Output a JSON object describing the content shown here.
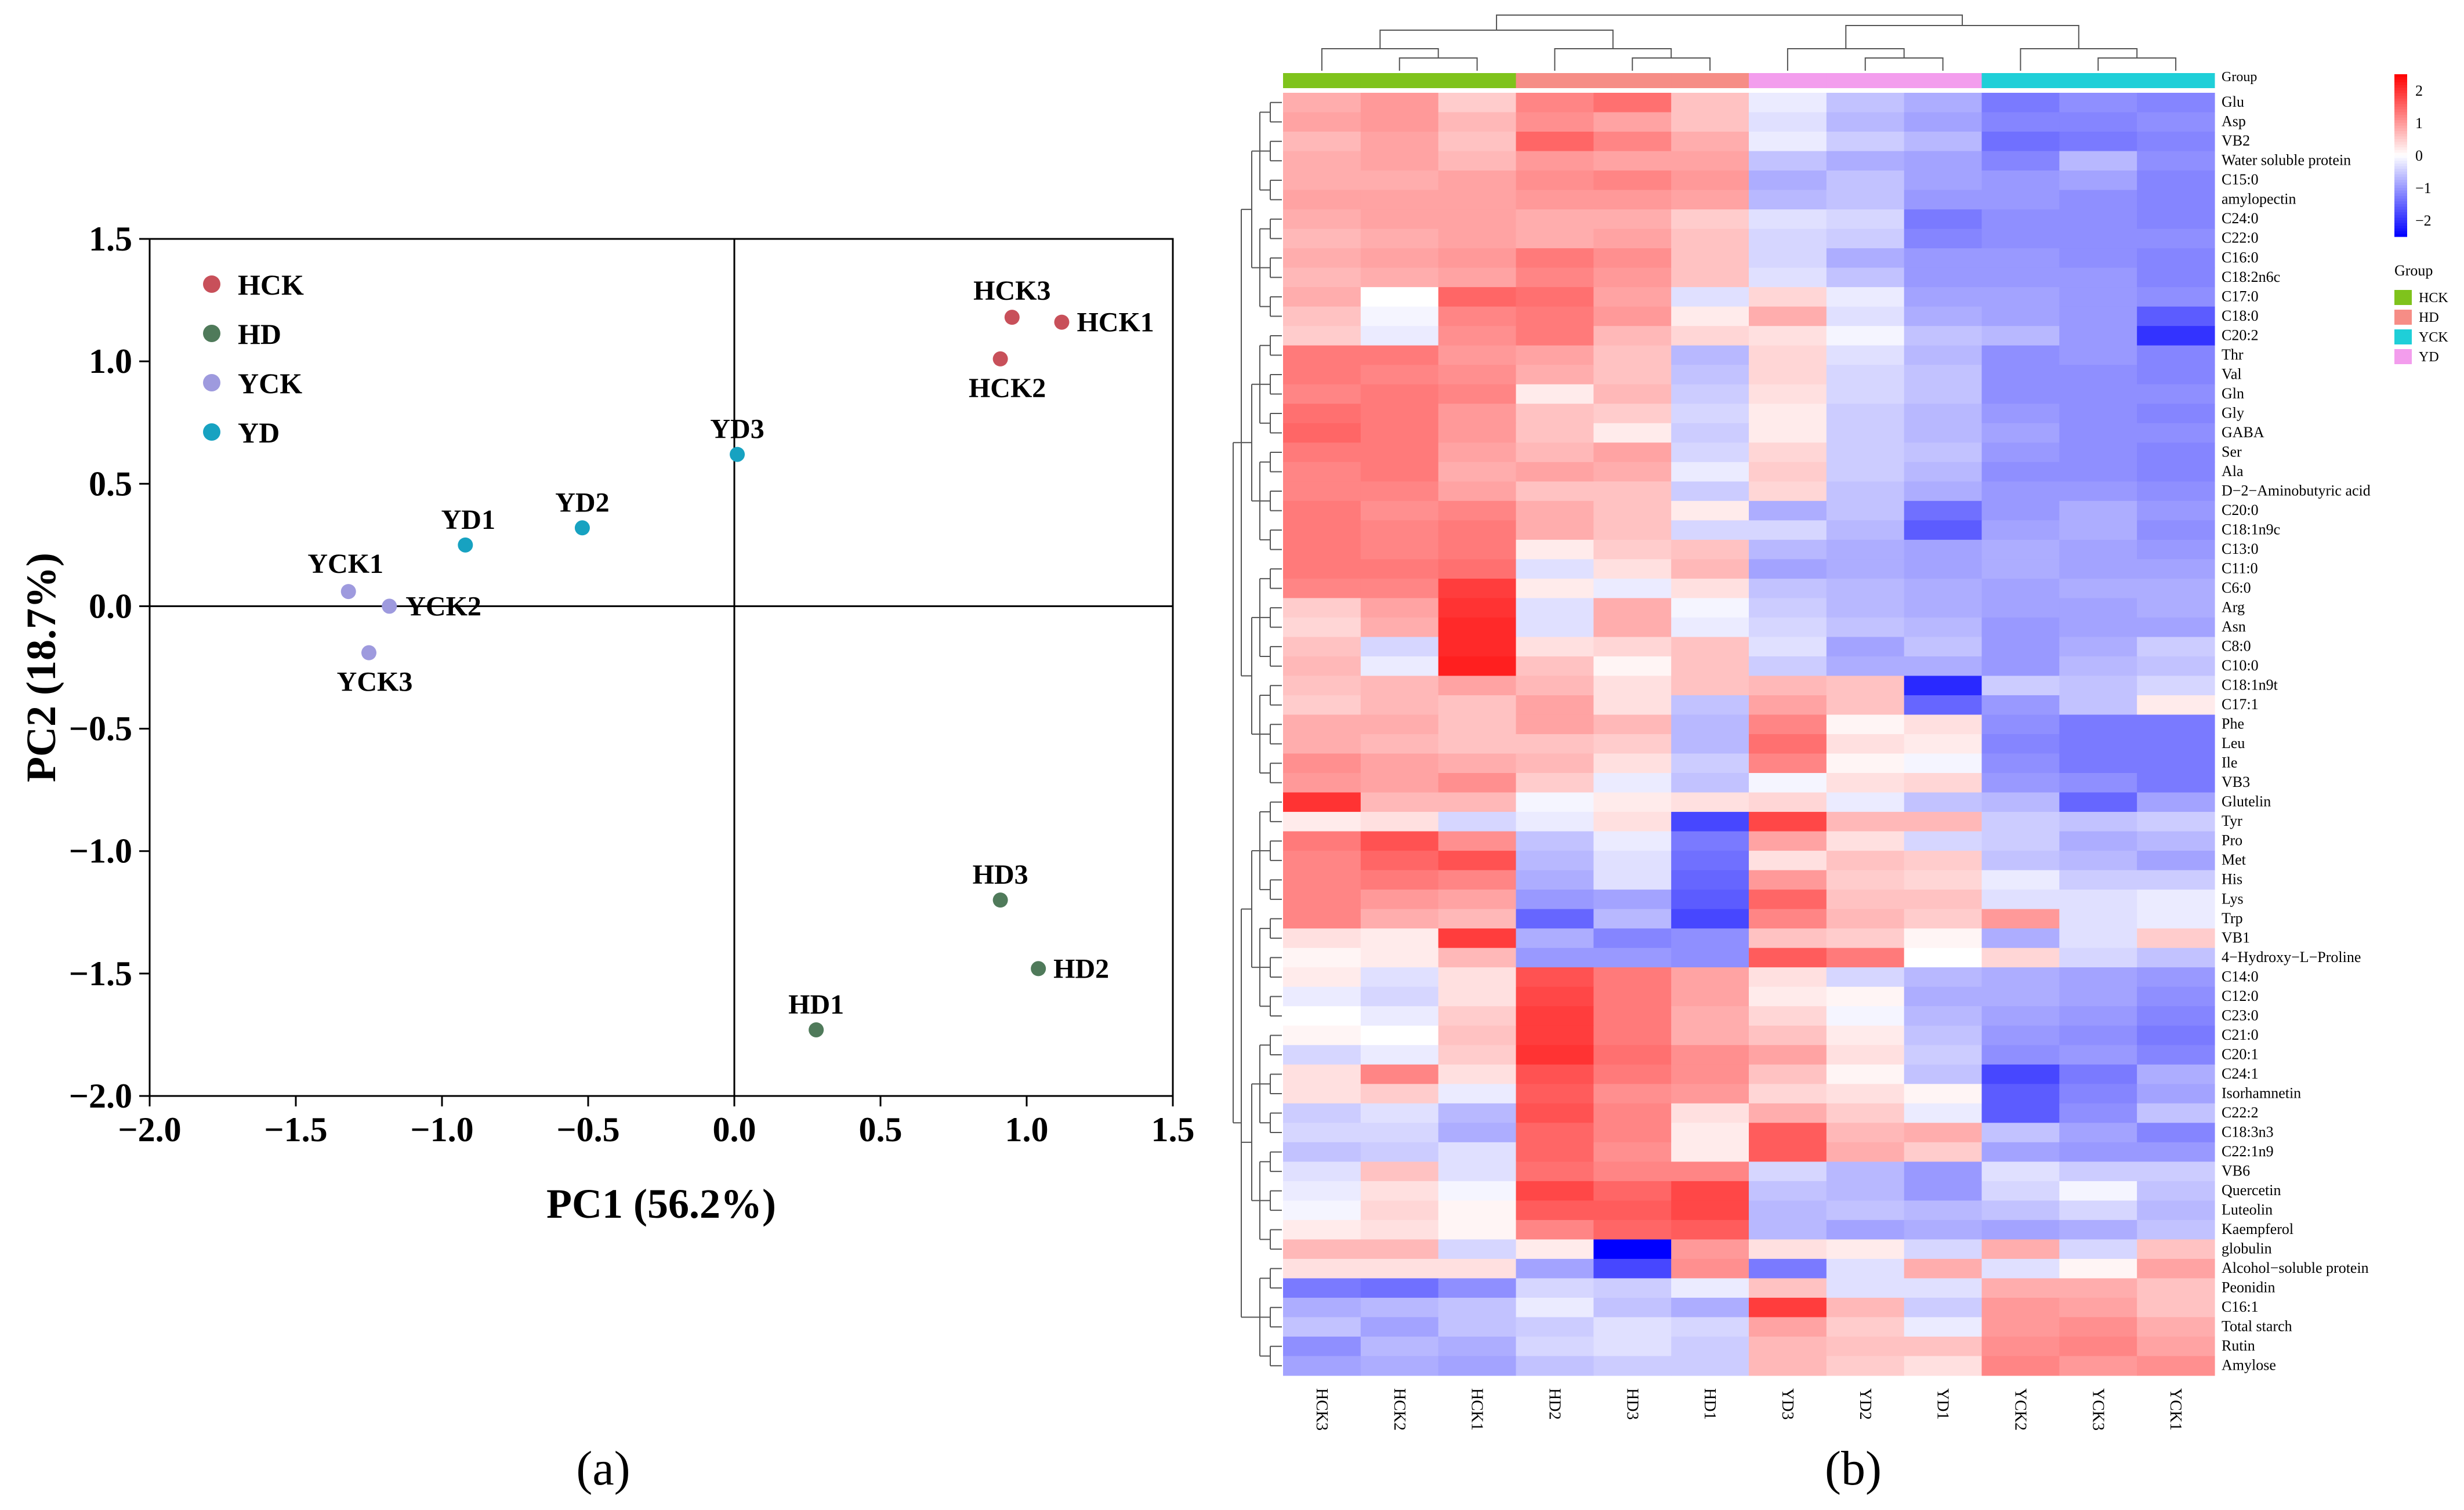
{
  "panel_labels": {
    "a": "(a)",
    "b": "(b)"
  },
  "colors": {
    "HCK": "#c8505a",
    "HD": "#4f7a5a",
    "YCK": "#9e9ade",
    "YD": "#17a2c1",
    "grp_HCK": "#7fc31c",
    "grp_HD": "#f68d86",
    "grp_YD": "#f39ded",
    "grp_YCK": "#1fcfd8"
  },
  "chart_data": [
    {
      "type": "scatter",
      "title": "",
      "xlabel": "PC1 (56.2%)",
      "ylabel": "PC2 (18.7%)",
      "xlim": [
        -2.0,
        1.5
      ],
      "ylim": [
        -2.0,
        1.5
      ],
      "x_ticks": [
        "−2.0",
        "−1.5",
        "−1.0",
        "−0.5",
        "0.0",
        "0.5",
        "1.0",
        "1.5"
      ],
      "y_ticks": [
        "−2.0",
        "−1.5",
        "−1.0",
        "−0.5",
        "0.0",
        "0.5",
        "1.0",
        "1.5"
      ],
      "legend": [
        "HCK",
        "HD",
        "YCK",
        "YD"
      ],
      "legend_position": "top-left",
      "points": [
        {
          "label": "HCK1",
          "group": "HCK",
          "x": 1.12,
          "y": 1.16
        },
        {
          "label": "HCK2",
          "group": "HCK",
          "x": 0.91,
          "y": 1.01
        },
        {
          "label": "HCK3",
          "group": "HCK",
          "x": 0.95,
          "y": 1.18
        },
        {
          "label": "HD1",
          "group": "HD",
          "x": 0.28,
          "y": -1.73
        },
        {
          "label": "HD2",
          "group": "HD",
          "x": 1.04,
          "y": -1.48
        },
        {
          "label": "HD3",
          "group": "HD",
          "x": 0.91,
          "y": -1.2
        },
        {
          "label": "YCK1",
          "group": "YCK",
          "x": -1.32,
          "y": 0.06
        },
        {
          "label": "YCK2",
          "group": "YCK",
          "x": -1.18,
          "y": 0.0
        },
        {
          "label": "YCK3",
          "group": "YCK",
          "x": -1.25,
          "y": -0.19
        },
        {
          "label": "YD1",
          "group": "YD",
          "x": -0.92,
          "y": 0.25
        },
        {
          "label": "YD2",
          "group": "YD",
          "x": -0.52,
          "y": 0.32
        },
        {
          "label": "YD3",
          "group": "YD",
          "x": 0.01,
          "y": 0.62
        }
      ]
    },
    {
      "type": "heatmap",
      "columns": [
        "HCK3",
        "HCK2",
        "HCK1",
        "HD2",
        "HD3",
        "HD1",
        "YD3",
        "YD2",
        "YD1",
        "YCK2",
        "YCK3",
        "YCK1"
      ],
      "column_groups": [
        "HCK",
        "HCK",
        "HCK",
        "HD",
        "HD",
        "HD",
        "YD",
        "YD",
        "YD",
        "YCK",
        "YCK",
        "YCK"
      ],
      "group_bar_label": "Group",
      "group_legend_title": "Group",
      "group_legend": [
        "HCK",
        "HD",
        "YCK",
        "YD"
      ],
      "colorbar_ticks": [
        "2",
        "1",
        "0",
        "−1",
        "−2"
      ],
      "colorbar_range": [
        -2.5,
        2.5
      ],
      "rows": [
        "Glu",
        "Asp",
        "VB2",
        "Water soluble protein",
        "C15:0",
        "amylopectin",
        "C24:0",
        "C22:0",
        "C16:0",
        "C18:2n6c",
        "C17:0",
        "C18:0",
        "C20:2",
        "Thr",
        "Val",
        "Gln",
        "Gly",
        "GABA",
        "Ser",
        "Ala",
        "D−2−Aminobutyric acid",
        "C20:0",
        "C18:1n9c",
        "C13:0",
        "C11:0",
        "C6:0",
        "Arg",
        "Asn",
        "C8:0",
        "C10:0",
        "C18:1n9t",
        "C17:1",
        "Phe",
        "Leu",
        "Ile",
        "VB3",
        "Glutelin",
        "Tyr",
        "Pro",
        "Met",
        "His",
        "Lys",
        "Trp",
        "VB1",
        "4−Hydroxy−L−Proline",
        "C14:0",
        "C12:0",
        "C23:0",
        "C21:0",
        "C20:1",
        "C24:1",
        "Isorhamnetin",
        "C22:2",
        "C18:3n3",
        "C22:1n9",
        "VB6",
        "Quercetin",
        "Luteolin",
        "Kaempferol",
        "globulin",
        "Alcohol−soluble protein",
        "Peonidin",
        "C16:1",
        "Total starch",
        "Rutin",
        "Amylose"
      ],
      "values": [
        [
          0.8,
          1.0,
          0.5,
          1.2,
          1.4,
          0.6,
          -0.2,
          -0.6,
          -0.8,
          -1.3,
          -1.1,
          -1.2
        ],
        [
          0.9,
          1.0,
          0.7,
          1.1,
          0.9,
          0.6,
          -0.3,
          -0.7,
          -0.9,
          -1.2,
          -1.2,
          -1.1
        ],
        [
          0.7,
          0.9,
          0.6,
          1.5,
          1.2,
          0.8,
          -0.2,
          -0.5,
          -0.7,
          -1.4,
          -1.3,
          -1.2
        ],
        [
          0.8,
          0.9,
          0.7,
          1.0,
          0.9,
          0.9,
          -0.6,
          -0.8,
          -0.9,
          -1.2,
          -0.7,
          -1.1
        ],
        [
          0.8,
          0.8,
          0.9,
          1.1,
          1.2,
          1.0,
          -0.8,
          -0.6,
          -0.9,
          -1.0,
          -0.9,
          -1.2
        ],
        [
          0.9,
          0.9,
          0.9,
          1.0,
          1.0,
          0.9,
          -0.7,
          -0.6,
          -1.0,
          -1.0,
          -1.1,
          -1.2
        ],
        [
          0.8,
          0.9,
          0.9,
          0.8,
          0.8,
          0.5,
          -0.3,
          -0.4,
          -1.3,
          -1.1,
          -1.1,
          -1.2
        ],
        [
          0.7,
          0.8,
          0.9,
          0.8,
          0.9,
          0.6,
          -0.4,
          -0.5,
          -1.2,
          -1.1,
          -1.1,
          -1.1
        ],
        [
          0.8,
          0.9,
          1.0,
          1.3,
          1.1,
          0.6,
          -0.4,
          -0.8,
          -1.0,
          -1.0,
          -1.1,
          -1.2
        ],
        [
          0.7,
          0.8,
          0.9,
          1.2,
          1.0,
          0.6,
          -0.3,
          -0.6,
          -1.0,
          -1.0,
          -1.0,
          -1.2
        ],
        [
          0.8,
          0.0,
          1.5,
          1.4,
          0.9,
          -0.3,
          0.4,
          -0.2,
          -0.9,
          -0.9,
          -1.0,
          -1.1
        ],
        [
          0.6,
          -0.1,
          1.2,
          1.3,
          1.0,
          0.2,
          0.8,
          -0.3,
          -0.8,
          -0.9,
          -1.0,
          -1.6
        ],
        [
          0.5,
          -0.2,
          1.1,
          1.3,
          0.7,
          0.4,
          0.3,
          -0.1,
          -0.6,
          -0.7,
          -1.0,
          -2.0
        ],
        [
          1.3,
          1.3,
          1.0,
          0.9,
          0.6,
          -0.7,
          0.4,
          -0.3,
          -0.7,
          -1.1,
          -1.0,
          -1.2
        ],
        [
          1.3,
          1.2,
          1.1,
          0.8,
          0.6,
          -0.6,
          0.4,
          -0.4,
          -0.6,
          -1.1,
          -1.1,
          -1.2
        ],
        [
          1.2,
          1.3,
          1.2,
          0.2,
          0.7,
          -0.5,
          0.3,
          -0.4,
          -0.6,
          -1.1,
          -1.1,
          -1.1
        ],
        [
          1.4,
          1.3,
          1.0,
          0.6,
          0.5,
          -0.4,
          0.2,
          -0.5,
          -0.7,
          -1.0,
          -1.1,
          -1.2
        ],
        [
          1.5,
          1.3,
          1.0,
          0.6,
          0.2,
          -0.5,
          0.2,
          -0.5,
          -0.7,
          -0.9,
          -1.1,
          -1.1
        ],
        [
          1.3,
          1.3,
          0.9,
          0.7,
          0.9,
          -0.4,
          0.4,
          -0.5,
          -0.6,
          -1.0,
          -1.1,
          -1.2
        ],
        [
          1.2,
          1.3,
          0.8,
          0.9,
          0.8,
          -0.2,
          0.5,
          -0.5,
          -0.7,
          -1.1,
          -1.1,
          -1.2
        ],
        [
          1.2,
          1.2,
          0.9,
          0.6,
          0.6,
          -0.5,
          0.4,
          -0.6,
          -0.8,
          -1.0,
          -1.0,
          -1.1
        ],
        [
          1.3,
          1.1,
          1.2,
          0.8,
          0.6,
          0.2,
          -0.8,
          -0.6,
          -1.4,
          -1.0,
          -0.8,
          -1.0
        ],
        [
          1.3,
          1.2,
          1.3,
          0.8,
          0.6,
          -0.4,
          -0.4,
          -0.7,
          -1.6,
          -0.9,
          -0.8,
          -1.1
        ],
        [
          1.3,
          1.2,
          1.3,
          0.2,
          0.5,
          0.6,
          -0.7,
          -0.8,
          -0.9,
          -0.8,
          -0.9,
          -1.0
        ],
        [
          1.3,
          1.3,
          1.4,
          -0.3,
          0.3,
          0.7,
          -0.9,
          -0.8,
          -0.9,
          -0.8,
          -0.9,
          -0.9
        ],
        [
          1.2,
          1.2,
          1.9,
          0.2,
          -0.2,
          0.3,
          -0.6,
          -0.7,
          -0.8,
          -0.9,
          -0.8,
          -0.8
        ],
        [
          0.5,
          0.9,
          2.0,
          -0.3,
          0.8,
          -0.1,
          -0.5,
          -0.7,
          -0.8,
          -0.9,
          -0.9,
          -0.8
        ],
        [
          0.4,
          0.8,
          2.1,
          -0.3,
          0.8,
          -0.2,
          -0.4,
          -0.6,
          -0.7,
          -1.0,
          -0.9,
          -0.9
        ],
        [
          0.6,
          -0.4,
          2.1,
          0.3,
          0.4,
          0.6,
          -0.3,
          -0.9,
          -0.6,
          -1.0,
          -0.8,
          -0.5
        ],
        [
          0.7,
          -0.2,
          2.2,
          0.6,
          0.1,
          0.6,
          -0.5,
          -0.8,
          -0.8,
          -1.0,
          -0.7,
          -0.6
        ],
        [
          0.6,
          0.7,
          0.9,
          0.7,
          0.3,
          0.6,
          0.7,
          0.6,
          -2.1,
          -0.5,
          -0.6,
          -0.4
        ],
        [
          0.5,
          0.7,
          0.6,
          0.9,
          0.3,
          -0.6,
          0.9,
          0.6,
          -1.5,
          -1.0,
          -0.6,
          0.2
        ],
        [
          0.8,
          0.8,
          0.6,
          0.9,
          0.7,
          -0.7,
          1.2,
          0.1,
          0.3,
          -1.1,
          -1.3,
          -1.3
        ],
        [
          0.8,
          0.7,
          0.6,
          0.6,
          0.5,
          -0.7,
          1.4,
          0.3,
          0.2,
          -1.2,
          -1.3,
          -1.3
        ],
        [
          1.1,
          0.9,
          0.8,
          0.7,
          0.3,
          -0.5,
          1.2,
          0.1,
          -0.1,
          -1.1,
          -1.3,
          -1.3
        ],
        [
          1.0,
          0.9,
          1.1,
          0.5,
          -0.2,
          -0.6,
          -0.1,
          0.3,
          0.4,
          -1.0,
          -1.1,
          -1.3
        ],
        [
          2.0,
          0.7,
          0.7,
          -0.1,
          0.2,
          0.3,
          0.4,
          -0.2,
          -0.6,
          -0.7,
          -1.5,
          -0.9
        ],
        [
          0.2,
          0.3,
          -0.4,
          -0.2,
          0.3,
          -1.8,
          1.8,
          0.7,
          0.7,
          -0.5,
          -0.6,
          -0.5
        ],
        [
          1.3,
          1.7,
          1.1,
          -0.6,
          -0.2,
          -1.3,
          0.9,
          0.3,
          -0.4,
          -0.5,
          -0.8,
          -0.7
        ],
        [
          1.2,
          1.5,
          1.7,
          -0.7,
          -0.3,
          -1.4,
          0.3,
          0.6,
          0.5,
          -0.6,
          -0.7,
          -0.9
        ],
        [
          1.2,
          1.3,
          1.2,
          -0.8,
          -0.3,
          -1.5,
          1.0,
          0.5,
          0.4,
          -0.2,
          -0.5,
          -0.5
        ],
        [
          1.2,
          1.0,
          0.9,
          -1.0,
          -0.9,
          -1.6,
          1.5,
          0.6,
          0.6,
          -0.3,
          -0.3,
          -0.2
        ],
        [
          1.2,
          0.8,
          0.7,
          -1.5,
          -0.7,
          -1.8,
          1.2,
          0.7,
          0.5,
          1.0,
          -0.3,
          -0.2
        ],
        [
          0.3,
          0.2,
          1.9,
          -0.8,
          -1.2,
          -1.1,
          0.6,
          0.5,
          0.1,
          -0.8,
          -0.3,
          0.5
        ],
        [
          0.1,
          0.2,
          0.7,
          -1.0,
          -1.0,
          -1.1,
          1.6,
          1.3,
          0.0,
          0.4,
          -0.4,
          -0.6
        ],
        [
          0.2,
          -0.3,
          0.3,
          1.7,
          1.3,
          0.9,
          0.3,
          -0.4,
          -0.7,
          -0.8,
          -0.9,
          -1.0
        ],
        [
          -0.2,
          -0.4,
          0.3,
          1.8,
          1.3,
          0.9,
          0.2,
          0.1,
          -0.8,
          -0.8,
          -0.9,
          -1.1
        ],
        [
          0.0,
          -0.2,
          0.5,
          1.9,
          1.3,
          0.8,
          0.4,
          -0.1,
          -0.7,
          -0.9,
          -1.0,
          -1.2
        ],
        [
          0.1,
          0.0,
          0.6,
          1.9,
          1.3,
          0.8,
          0.6,
          0.2,
          -0.6,
          -1.0,
          -1.1,
          -1.3
        ],
        [
          -0.4,
          -0.2,
          0.5,
          2.0,
          1.4,
          1.1,
          0.9,
          0.3,
          -0.5,
          -1.1,
          -1.0,
          -1.2
        ],
        [
          0.3,
          1.2,
          0.3,
          1.7,
          1.3,
          1.1,
          0.6,
          0.1,
          -0.6,
          -1.8,
          -1.3,
          -0.8
        ],
        [
          0.3,
          0.5,
          -0.2,
          1.6,
          1.1,
          1.0,
          0.4,
          0.3,
          0.1,
          -1.6,
          -1.2,
          -0.9
        ],
        [
          -0.5,
          -0.3,
          -0.7,
          1.7,
          1.2,
          0.3,
          0.8,
          0.5,
          -0.2,
          -1.6,
          -1.1,
          -0.6
        ],
        [
          -0.4,
          -0.4,
          -0.8,
          1.5,
          1.2,
          0.2,
          1.6,
          0.7,
          0.8,
          -0.6,
          -0.9,
          -1.2
        ],
        [
          -0.6,
          -0.5,
          -0.3,
          1.5,
          1.1,
          0.2,
          1.6,
          0.8,
          0.5,
          -0.9,
          -1.0,
          -1.0
        ],
        [
          -0.3,
          0.6,
          -0.3,
          1.4,
          1.2,
          1.2,
          -0.4,
          -0.7,
          -1.0,
          -0.3,
          -0.5,
          -0.5
        ],
        [
          -0.2,
          0.3,
          -0.1,
          1.8,
          1.5,
          1.8,
          -0.6,
          -0.7,
          -1.0,
          -0.4,
          -0.1,
          -0.6
        ],
        [
          -0.1,
          0.4,
          0.1,
          1.6,
          1.6,
          1.8,
          -0.7,
          -0.6,
          -0.7,
          -0.6,
          -0.4,
          -0.7
        ],
        [
          0.2,
          0.3,
          0.1,
          1.2,
          1.5,
          1.6,
          -0.7,
          -0.9,
          -0.8,
          -0.9,
          -0.8,
          -0.6
        ],
        [
          0.7,
          0.7,
          -0.4,
          0.2,
          -2.5,
          1.0,
          0.3,
          0.2,
          -0.4,
          0.8,
          -0.4,
          0.6
        ],
        [
          0.3,
          0.3,
          0.3,
          -0.9,
          -1.8,
          1.1,
          -1.3,
          -0.3,
          0.8,
          -0.3,
          0.1,
          0.9
        ],
        [
          -1.3,
          -1.4,
          -1.1,
          -0.4,
          -0.5,
          -0.2,
          0.6,
          -0.3,
          -0.3,
          0.8,
          0.8,
          0.6
        ],
        [
          -0.8,
          -0.7,
          -0.6,
          -0.2,
          -0.6,
          -0.8,
          1.9,
          0.7,
          -0.5,
          1.0,
          0.9,
          0.6
        ],
        [
          -0.6,
          -0.9,
          -0.6,
          -0.5,
          -0.3,
          -0.4,
          0.9,
          0.5,
          -0.2,
          1.0,
          1.1,
          0.8
        ],
        [
          -1.1,
          -0.7,
          -0.8,
          -0.4,
          -0.3,
          -0.5,
          0.7,
          0.6,
          0.6,
          1.1,
          1.2,
          0.9
        ],
        [
          -0.9,
          -0.8,
          -0.9,
          -0.6,
          -0.5,
          -0.5,
          0.7,
          0.5,
          0.3,
          1.2,
          1.0,
          1.1
        ]
      ]
    }
  ]
}
